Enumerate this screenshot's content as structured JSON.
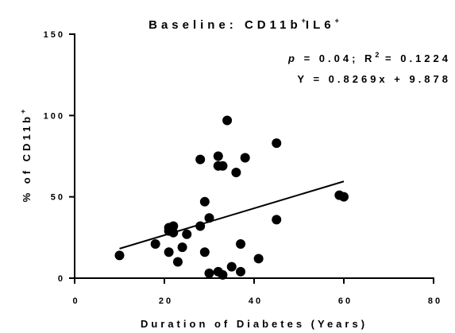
{
  "chart_data": {
    "type": "scatter",
    "title": {
      "main": "Baseline: CD11b",
      "sup1": "+",
      "mid": "IL6",
      "sup2": "+"
    },
    "xlabel": "Duration of Diabetes (Years)",
    "ylabel": {
      "main": "% of CD11b",
      "sup": "+"
    },
    "xlim": [
      0,
      80
    ],
    "ylim": [
      0,
      150
    ],
    "xticks": [
      "0",
      "20",
      "40",
      "60",
      "80"
    ],
    "yticks": [
      "0",
      "50",
      "100",
      "150"
    ],
    "grid": false,
    "legend": "none",
    "annotations": {
      "stats": {
        "p_label": "p",
        "p_rest": " = 0.04; R",
        "r2_sup": "2",
        "r2_rest": " = 0.1224"
      },
      "equation": "Y = 0.8269x + 9.878"
    },
    "regression": {
      "slope": 0.8269,
      "intercept": 9.878,
      "x_range": [
        10,
        60
      ]
    },
    "points": [
      {
        "x": 10,
        "y": 14
      },
      {
        "x": 18,
        "y": 21
      },
      {
        "x": 21,
        "y": 16
      },
      {
        "x": 21,
        "y": 29
      },
      {
        "x": 21,
        "y": 31
      },
      {
        "x": 22,
        "y": 28
      },
      {
        "x": 22,
        "y": 32
      },
      {
        "x": 23,
        "y": 10
      },
      {
        "x": 24,
        "y": 19
      },
      {
        "x": 25,
        "y": 27
      },
      {
        "x": 28,
        "y": 73
      },
      {
        "x": 28,
        "y": 32
      },
      {
        "x": 29,
        "y": 47
      },
      {
        "x": 29,
        "y": 16
      },
      {
        "x": 30,
        "y": 37
      },
      {
        "x": 30,
        "y": 3
      },
      {
        "x": 32,
        "y": 75
      },
      {
        "x": 32,
        "y": 69
      },
      {
        "x": 32,
        "y": 4
      },
      {
        "x": 33,
        "y": 69
      },
      {
        "x": 33,
        "y": 2
      },
      {
        "x": 34,
        "y": 97
      },
      {
        "x": 35,
        "y": 7
      },
      {
        "x": 36,
        "y": 65
      },
      {
        "x": 37,
        "y": 21
      },
      {
        "x": 37,
        "y": 4
      },
      {
        "x": 38,
        "y": 74
      },
      {
        "x": 41,
        "y": 12
      },
      {
        "x": 45,
        "y": 83
      },
      {
        "x": 45,
        "y": 36
      },
      {
        "x": 59,
        "y": 51
      },
      {
        "x": 60,
        "y": 50
      }
    ]
  }
}
